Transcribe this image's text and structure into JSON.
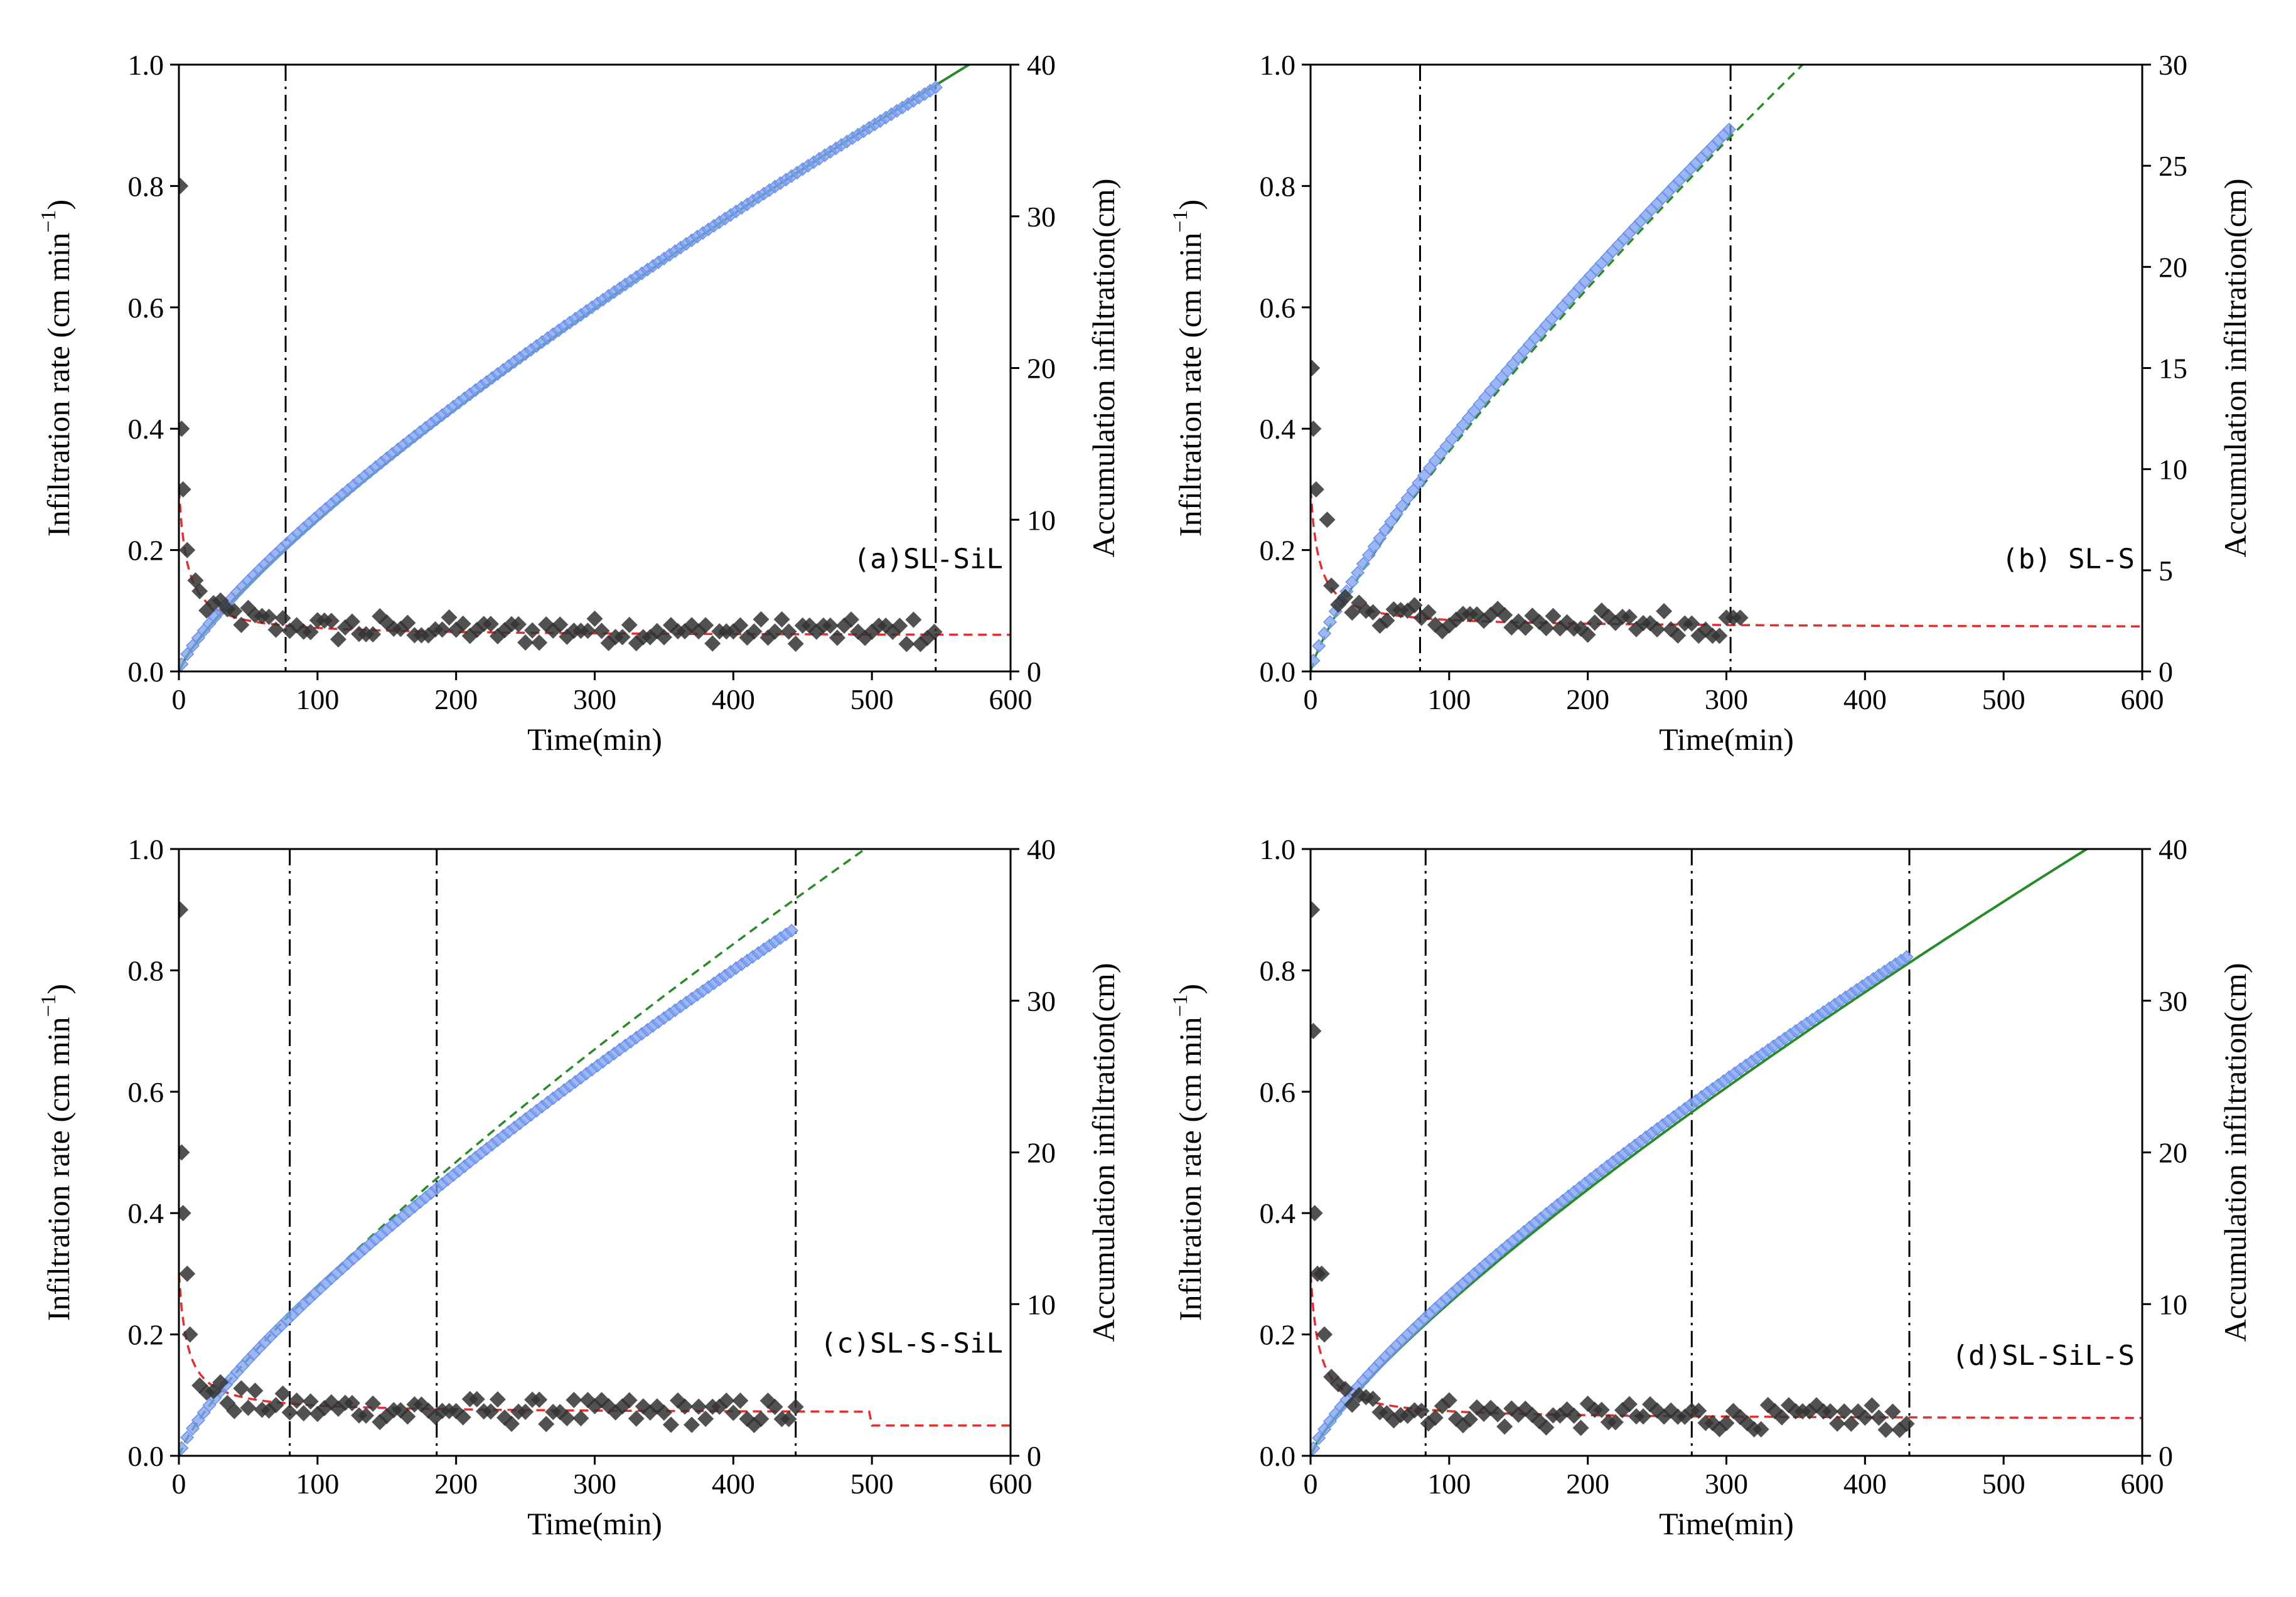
{
  "chart_data": [
    {
      "type": "scatter",
      "panel_label": "(a)SL-SiL",
      "label_position": "middle-right",
      "xlabel": "Time(min)",
      "ylabel": "Infiltration rate (cm min",
      "ylabel_sup": "−1",
      "ylabel_close": ")",
      "y2label": "Accumulation infiltration(cm)",
      "xlim": [
        0,
        600
      ],
      "ylim": [
        0,
        1.0
      ],
      "y2lim": [
        0,
        40
      ],
      "xticks": [
        "0",
        "100",
        "200",
        "300",
        "400",
        "500",
        "600"
      ],
      "yticks": [
        "0.0",
        "0.2",
        "0.4",
        "0.6",
        "0.8",
        "1.0"
      ],
      "y2ticks": [
        "0",
        "10",
        "20",
        "30",
        "40"
      ],
      "vlines": [
        77,
        546
      ],
      "rate": {
        "t_end": 546,
        "f_initial": 0.3,
        "f_final": 0.063,
        "early_points": [
          [
            1,
            0.8
          ],
          [
            2,
            0.4
          ],
          [
            3,
            0.3
          ],
          [
            6,
            0.2
          ],
          [
            12,
            0.15
          ]
        ]
      },
      "rate_fit": {
        "x_end": 600,
        "f_start": 0.3,
        "f_final": 0.058,
        "style": "dashed",
        "color": "#e03030"
      },
      "cumulative": {
        "t_end": 546,
        "I_end": 38.5,
        "color": "#7b9ff0"
      },
      "cumulative_fit": {
        "x_end": 570,
        "I_end": 40.0,
        "style": "solid",
        "color": "#2a8a2a"
      }
    },
    {
      "type": "scatter",
      "panel_label": "(b)  SL-S",
      "label_position": "middle-right",
      "xlabel": "Time(min)",
      "ylabel": "Infiltration rate (cm min",
      "ylabel_sup": "−1",
      "ylabel_close": ")",
      "y2label": "Accumulation infiltration(cm)",
      "xlim": [
        0,
        600
      ],
      "ylim": [
        0,
        1.0
      ],
      "y2lim": [
        0,
        30
      ],
      "xticks": [
        "0",
        "100",
        "200",
        "300",
        "400",
        "500",
        "600"
      ],
      "yticks": [
        "0.0",
        "0.2",
        "0.4",
        "0.6",
        "0.8",
        "1.0"
      ],
      "y2ticks": [
        "0",
        "5",
        "10",
        "15",
        "20",
        "25",
        "30"
      ],
      "vlines": [
        79,
        303
      ],
      "rate": {
        "t_end": 310,
        "f_initial": 0.3,
        "f_final": 0.075,
        "early_points": [
          [
            1,
            0.5
          ],
          [
            2,
            0.4
          ],
          [
            4,
            0.3
          ],
          [
            12,
            0.25
          ]
        ]
      },
      "rate_fit": {
        "x_end": 600,
        "f_start": 0.3,
        "f_final": 0.072,
        "style": "dashed",
        "color": "#e03030"
      },
      "cumulative": {
        "t_end": 305,
        "I_end": 27.0,
        "color": "#7b9ff0"
      },
      "cumulative_fit": {
        "x_end": 355,
        "I_end": 30.0,
        "style": "dashed",
        "color": "#2a8a2a"
      }
    },
    {
      "type": "scatter",
      "panel_label": "(c)SL-S-SiL",
      "label_position": "middle-right",
      "xlabel": "Time(min)",
      "ylabel": "Infiltration rate (cm min",
      "ylabel_sup": "−1",
      "ylabel_close": ")",
      "y2label": "Accumulation infiltration(cm)",
      "xlim": [
        0,
        600
      ],
      "ylim": [
        0,
        1.0
      ],
      "y2lim": [
        0,
        40
      ],
      "xticks": [
        "0",
        "100",
        "200",
        "300",
        "400",
        "500",
        "600"
      ],
      "yticks": [
        "0.0",
        "0.2",
        "0.4",
        "0.6",
        "0.8",
        "1.0"
      ],
      "y2ticks": [
        "0",
        "10",
        "20",
        "30",
        "40"
      ],
      "vlines": [
        80,
        186,
        445
      ],
      "rate": {
        "t_end": 445,
        "f_initial": 0.3,
        "f_final": 0.068,
        "early_points": [
          [
            1,
            0.9
          ],
          [
            2,
            0.5
          ],
          [
            3,
            0.4
          ],
          [
            6,
            0.3
          ],
          [
            8,
            0.2
          ]
        ]
      },
      "rate_fit": {
        "x_end": 600,
        "f_start": 0.3,
        "f_final": 0.07,
        "step_at": 500,
        "f_after_step": 0.05,
        "style": "dashed",
        "color": "#e03030"
      },
      "cumulative": {
        "t_end": 445,
        "I_end": 34.8,
        "color": "#7b9ff0"
      },
      "cumulative_fit": {
        "x_end": 495,
        "I_end": 40.0,
        "style": "dashed",
        "color": "#2a8a2a"
      }
    },
    {
      "type": "scatter",
      "panel_label": "(d)SL-SiL-S",
      "label_position": "lower-right",
      "xlabel": "Time(min)",
      "ylabel": "Infiltration rate (cm min",
      "ylabel_sup": "−1",
      "ylabel_close": ")",
      "y2label": "Accumulation infiltration(cm)",
      "xlim": [
        0,
        600
      ],
      "ylim": [
        0,
        1.0
      ],
      "y2lim": [
        0,
        40
      ],
      "xticks": [
        "0",
        "100",
        "200",
        "300",
        "400",
        "500",
        "600"
      ],
      "yticks": [
        "0.0",
        "0.2",
        "0.4",
        "0.6",
        "0.8",
        "1.0"
      ],
      "y2ticks": [
        "0",
        "10",
        "20",
        "30",
        "40"
      ],
      "vlines": [
        83,
        275,
        432
      ],
      "rate": {
        "t_end": 432,
        "f_initial": 0.3,
        "f_final": 0.06,
        "early_points": [
          [
            1,
            0.9
          ],
          [
            2,
            0.7
          ],
          [
            3,
            0.4
          ],
          [
            5,
            0.3
          ],
          [
            8,
            0.3
          ],
          [
            10,
            0.2
          ]
        ]
      },
      "rate_fit": {
        "x_end": 600,
        "f_start": 0.3,
        "f_final": 0.06,
        "style": "dashed",
        "color": "#e03030"
      },
      "cumulative": {
        "t_end": 432,
        "I_end": 33.0,
        "color": "#7b9ff0"
      },
      "cumulative_fit": {
        "x_end": 560,
        "I_end": 40.0,
        "style": "solid",
        "color": "#2a8a2a"
      }
    }
  ]
}
